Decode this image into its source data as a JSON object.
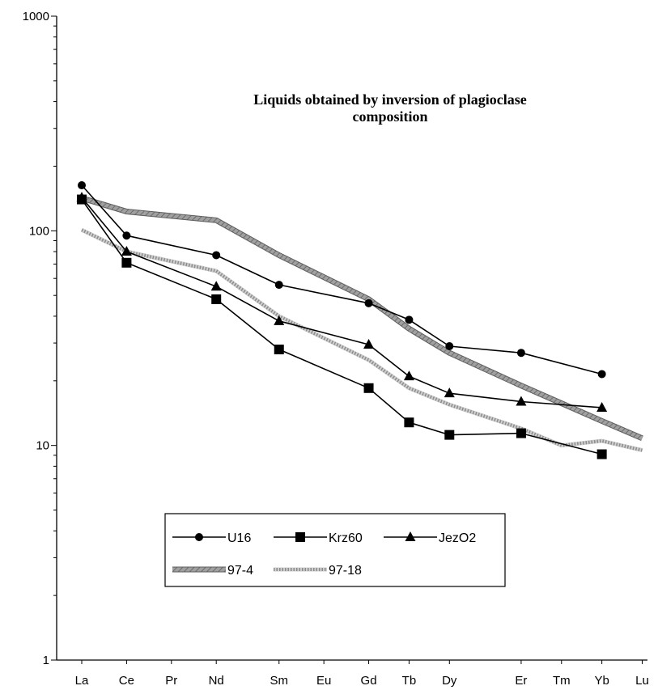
{
  "chart_data": {
    "type": "line",
    "title": [
      "Liquids obtained by inversion of plagioclase",
      "composition"
    ],
    "xlabel": "",
    "ylabel": "",
    "y_scale": "log",
    "ylim": [
      1,
      1000
    ],
    "y_ticks": [
      "1",
      "10",
      "100",
      "1000"
    ],
    "categories": [
      "La",
      "Ce",
      "Pr",
      "Nd",
      "Sm",
      "Eu",
      "Gd",
      "Tb",
      "Dy",
      "Er",
      "Tm",
      "Yb",
      "Lu"
    ],
    "category_positions": [
      0,
      1,
      2,
      3,
      4.4,
      5.4,
      6.4,
      7.3,
      8.2,
      9.8,
      10.7,
      11.6,
      12.5
    ],
    "grid": false,
    "legend_position": "bottom-center",
    "series": [
      {
        "name": "U16",
        "marker": "circle",
        "style": "solid",
        "color": "#000000",
        "x": [
          "La",
          "Ce",
          "Nd",
          "Sm",
          "Gd",
          "Tb",
          "Dy",
          "Er",
          "Yb"
        ],
        "values": [
          163,
          95,
          77,
          56,
          46,
          38.5,
          29,
          27,
          21.5
        ]
      },
      {
        "name": "Krz60",
        "marker": "square",
        "style": "solid",
        "color": "#000000",
        "x": [
          "La",
          "Ce",
          "Nd",
          "Sm",
          "Gd",
          "Tb",
          "Dy",
          "Er",
          "Yb"
        ],
        "values": [
          140,
          71,
          48,
          28,
          18.5,
          12.8,
          11.2,
          11.4,
          9.1
        ]
      },
      {
        "name": "JezO2",
        "marker": "triangle",
        "style": "solid",
        "color": "#000000",
        "x": [
          "La",
          "Ce",
          "Nd",
          "Sm",
          "Gd",
          "Tb",
          "Dy",
          "Er",
          "Yb"
        ],
        "values": [
          143,
          80,
          55,
          38,
          29.5,
          21,
          17.5,
          16,
          15
        ]
      },
      {
        "name": "97-4",
        "marker": "none",
        "style": "thick-hatched",
        "color": "#8a8a8a",
        "x": [
          "La",
          "Ce",
          "Nd",
          "Sm",
          "Gd",
          "Tb",
          "Dy",
          "Er",
          "Yb",
          "Lu"
        ],
        "values": [
          142,
          123,
          112,
          77,
          48,
          35,
          27,
          19,
          13,
          10.8
        ]
      },
      {
        "name": "97-18",
        "marker": "none",
        "style": "dotted-band",
        "color": "#b5b5b5",
        "x": [
          "La",
          "Ce",
          "Nd",
          "Sm",
          "Gd",
          "Tb",
          "Dy",
          "Er",
          "Tm",
          "Yb",
          "Lu"
        ],
        "values": [
          101,
          80,
          65,
          40,
          25,
          18.5,
          15.5,
          12,
          10,
          10.5,
          9.5
        ]
      }
    ]
  }
}
